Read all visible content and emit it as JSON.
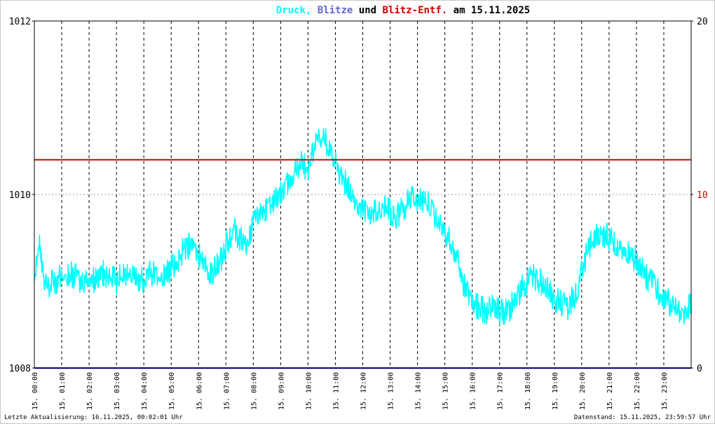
{
  "title_parts": [
    {
      "text": "Druck,",
      "color": "#00ffff"
    },
    {
      "text": "Blitze",
      "color": "#6666cc"
    },
    {
      "text": "und",
      "color": "#000000"
    },
    {
      "text": "Blitz-Entf.",
      "color": "#cc0000"
    },
    {
      "text": "am 15.11.2025",
      "color": "#000000"
    }
  ],
  "footer": {
    "left": "Letzte Aktualisierung: 16.11.2025, 00:02:01 Uhr",
    "right": "Datenstand: 15.11.2025, 23:59:57 Uhr"
  },
  "chart_data": {
    "type": "line",
    "title": "Druck, Blitze und Blitz-Entf. am 15.11.2025",
    "x_range_hours": [
      0,
      24
    ],
    "x_tick_labels": [
      "15. 00:00",
      "15. 01:00",
      "15. 02:00",
      "15. 03:00",
      "15. 04:00",
      "15. 05:00",
      "15. 06:00",
      "15. 07:00",
      "15. 08:00",
      "15. 09:00",
      "15. 10:00",
      "15. 11:00",
      "15. 12:00",
      "15. 13:00",
      "15. 14:00",
      "15. 15:00",
      "15. 16:00",
      "15. 17:00",
      "15. 18:00",
      "15. 19:00",
      "15. 20:00",
      "15. 21:00",
      "15. 22:00",
      "15. 23:00"
    ],
    "y_left": {
      "range": [
        1008,
        1012
      ],
      "ticks": [
        1008,
        1010,
        1012
      ]
    },
    "y_right": {
      "range": [
        0,
        20
      ],
      "ticks": [
        0,
        10,
        20
      ]
    },
    "grid": "vertical dashed every hour, horizontal dotted at 1010",
    "series": [
      {
        "name": "Druck",
        "axis": "left",
        "color": "#00ffff",
        "x_hours": [
          0,
          0.1,
          0.2,
          0.3,
          0.4,
          0.5,
          0.75,
          1,
          1.25,
          1.5,
          1.75,
          2,
          2.25,
          2.5,
          2.75,
          3,
          3.25,
          3.5,
          3.75,
          4,
          4.25,
          4.5,
          4.75,
          5,
          5.25,
          5.5,
          5.75,
          6,
          6.25,
          6.5,
          6.75,
          7,
          7.25,
          7.5,
          7.75,
          8,
          8.25,
          8.5,
          8.75,
          9,
          9.25,
          9.5,
          9.75,
          10,
          10.25,
          10.5,
          10.75,
          11,
          11.25,
          11.5,
          11.75,
          12,
          12.25,
          12.5,
          12.75,
          13,
          13.25,
          13.5,
          13.75,
          14,
          14.25,
          14.5,
          14.75,
          15,
          15.25,
          15.5,
          15.75,
          16,
          16.25,
          16.5,
          16.75,
          17,
          17.25,
          17.5,
          17.75,
          18,
          18.25,
          18.5,
          18.75,
          19,
          19.25,
          19.5,
          19.75,
          20,
          20.25,
          20.5,
          20.75,
          21,
          21.25,
          21.5,
          21.75,
          22,
          22.25,
          22.5,
          22.75,
          23,
          23.25,
          23.5,
          23.75,
          24
        ],
        "values": [
          1009.1,
          1009.3,
          1009.4,
          1009.2,
          1009.0,
          1008.95,
          1009.0,
          1009.05,
          1009.1,
          1009.05,
          1009.0,
          1009.05,
          1009.0,
          1009.1,
          1009.05,
          1009.0,
          1009.1,
          1009.1,
          1009.05,
          1009.0,
          1009.1,
          1009.05,
          1009.05,
          1009.15,
          1009.25,
          1009.4,
          1009.4,
          1009.3,
          1009.2,
          1009.1,
          1009.2,
          1009.4,
          1009.6,
          1009.5,
          1009.4,
          1009.7,
          1009.8,
          1009.85,
          1009.9,
          1010.0,
          1010.1,
          1010.3,
          1010.35,
          1010.3,
          1010.6,
          1010.7,
          1010.55,
          1010.35,
          1010.2,
          1010.05,
          1009.9,
          1009.8,
          1009.75,
          1009.8,
          1009.85,
          1009.8,
          1009.75,
          1009.85,
          1009.95,
          1009.9,
          1009.95,
          1009.85,
          1009.7,
          1009.6,
          1009.4,
          1009.2,
          1008.9,
          1008.75,
          1008.7,
          1008.65,
          1008.7,
          1008.65,
          1008.65,
          1008.75,
          1008.9,
          1009.0,
          1009.05,
          1009.0,
          1008.9,
          1008.8,
          1008.75,
          1008.7,
          1008.85,
          1009.1,
          1009.4,
          1009.5,
          1009.55,
          1009.5,
          1009.4,
          1009.35,
          1009.3,
          1009.25,
          1009.1,
          1009.0,
          1008.9,
          1008.8,
          1008.75,
          1008.7,
          1008.6,
          1008.8
        ]
      },
      {
        "name": "Blitz-Entf.",
        "axis": "right",
        "color": "#cc0000",
        "x_hours": [
          0,
          24
        ],
        "values": [
          12,
          12
        ]
      },
      {
        "name": "Blitze",
        "axis": "right",
        "color": "#000080",
        "x_hours": [
          0,
          24
        ],
        "values": [
          0,
          0
        ]
      }
    ]
  }
}
